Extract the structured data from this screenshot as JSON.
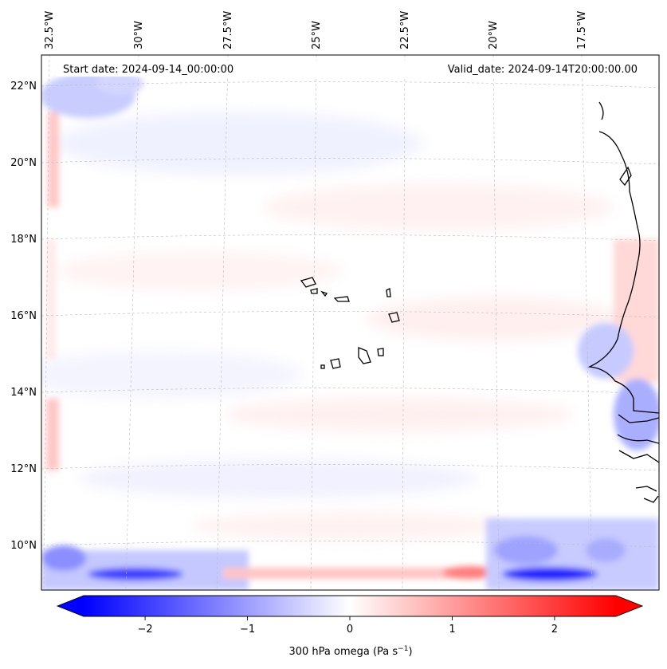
{
  "map": {
    "start_label": "Start date: 2024-09-14_00:00:00",
    "valid_label": "Valid_date: 2024-09-14T20:00:00.00",
    "lon_labels": [
      "32.5°W",
      "30°W",
      "27.5°W",
      "25°W",
      "22.5°W",
      "20°W",
      "17.5°W"
    ],
    "lat_labels": [
      "22°N",
      "20°N",
      "18°N",
      "16°N",
      "14°N",
      "12°N",
      "10°N"
    ],
    "gridlines": true,
    "features": [
      "coastline-west-africa",
      "cape-verde-islands"
    ]
  },
  "colorbar": {
    "label_main": "300 hPa omega (Pa s",
    "label_sup": "−1",
    "label_end": ")",
    "ticks": [
      "−2",
      "−1",
      "0",
      "1",
      "2"
    ],
    "tick_values": [
      -2,
      -1,
      0,
      1,
      2
    ],
    "range": [
      -2.6,
      2.6
    ],
    "extend": "both",
    "colormap": "bwr",
    "colors": {
      "negative": "#0000ff",
      "zero": "#ffffff",
      "positive": "#ff0000"
    }
  }
}
